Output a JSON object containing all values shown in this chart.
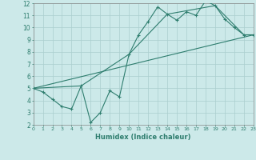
{
  "xlabel": "Humidex (Indice chaleur)",
  "xlim": [
    0,
    23
  ],
  "ylim": [
    2,
    12
  ],
  "xticks": [
    0,
    1,
    2,
    3,
    4,
    5,
    6,
    7,
    8,
    9,
    10,
    11,
    12,
    13,
    14,
    15,
    16,
    17,
    18,
    19,
    20,
    21,
    22,
    23
  ],
  "yticks": [
    2,
    3,
    4,
    5,
    6,
    7,
    8,
    9,
    10,
    11,
    12
  ],
  "background_color": "#cce9e9",
  "grid_color": "#aacece",
  "line_color": "#2e7d6e",
  "line1": {
    "x": [
      0,
      1,
      2,
      3,
      4,
      5,
      6,
      7,
      8,
      9,
      10,
      11,
      12,
      13,
      14,
      15,
      16,
      17,
      18,
      19,
      20,
      21,
      22,
      23
    ],
    "y": [
      5,
      4.7,
      4.1,
      3.5,
      3.3,
      5.2,
      2.2,
      3.0,
      4.8,
      4.3,
      7.8,
      9.4,
      10.5,
      11.7,
      11.1,
      10.6,
      11.3,
      11.0,
      12.2,
      11.8,
      10.7,
      10.0,
      9.4,
      9.4
    ]
  },
  "line2": {
    "x": [
      0,
      5,
      10,
      14,
      19,
      22,
      23
    ],
    "y": [
      5.0,
      5.2,
      7.8,
      11.1,
      11.8,
      9.4,
      9.4
    ]
  },
  "line3": {
    "x": [
      0,
      23
    ],
    "y": [
      5.0,
      9.4
    ]
  }
}
